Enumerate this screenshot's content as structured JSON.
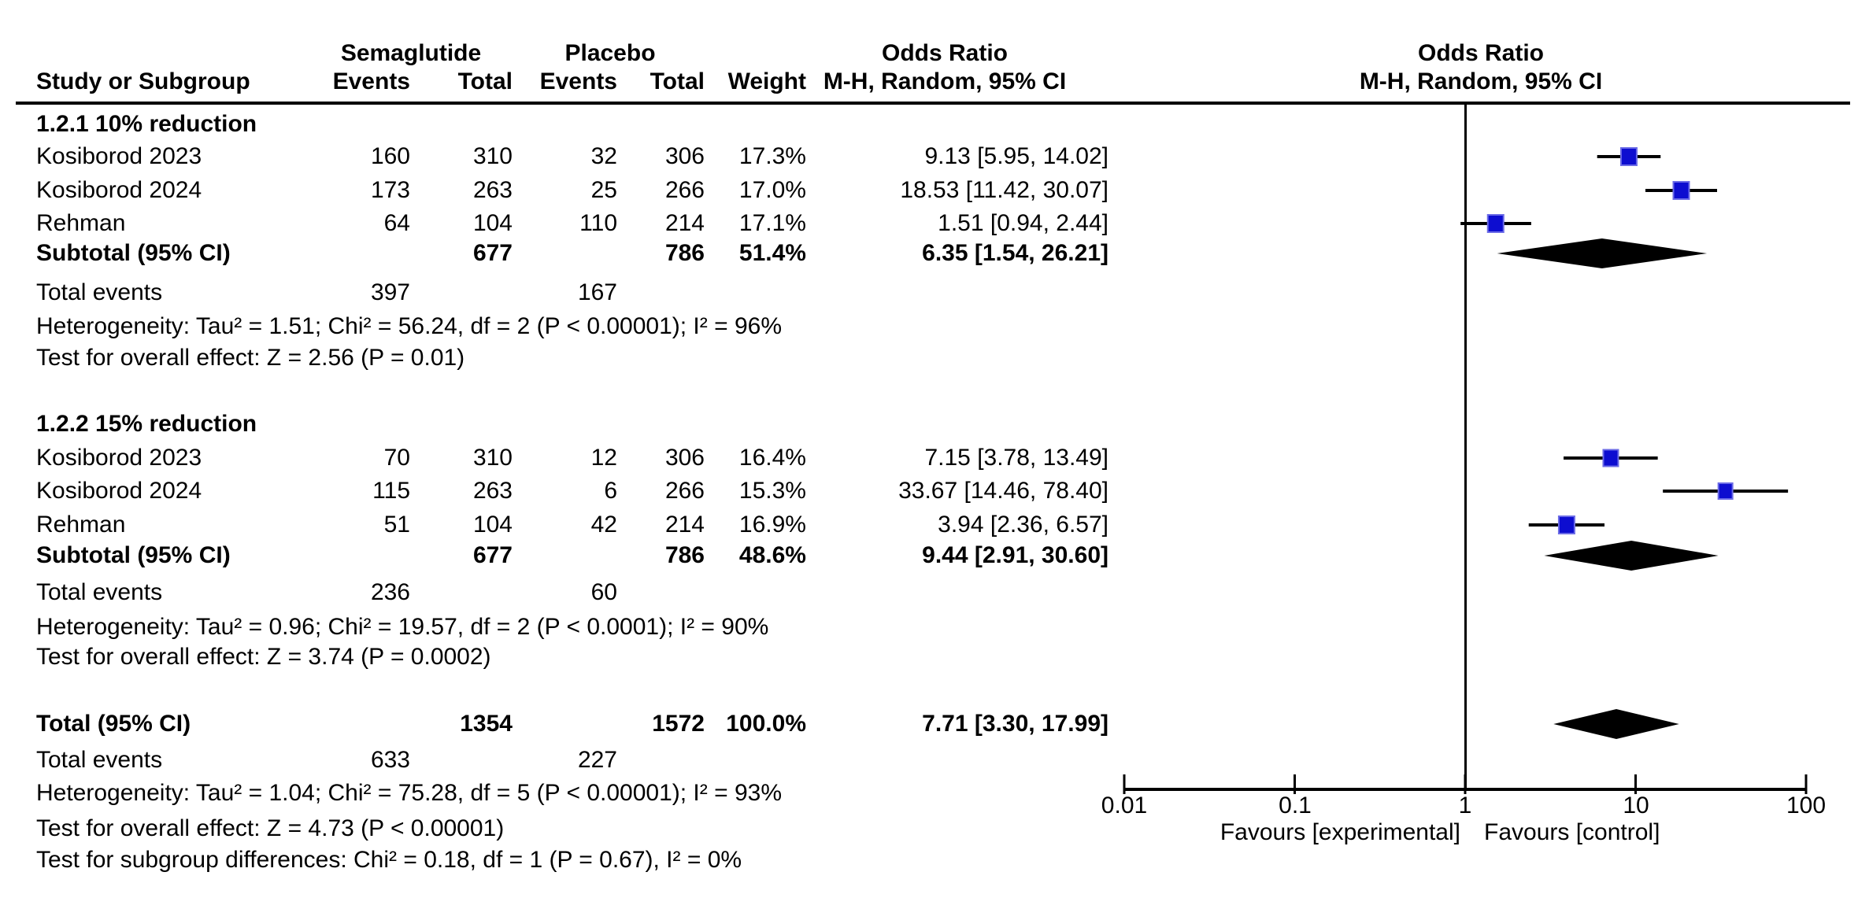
{
  "header": {
    "study": "Study or Subgroup",
    "group1": "Semaglutide",
    "group2": "Placebo",
    "events": "Events",
    "total": "Total",
    "weight": "Weight",
    "or_line1": "Odds Ratio",
    "mh": "M-H, Random, 95% CI"
  },
  "colors": {
    "marker_fill": "#0d0dd0",
    "marker_edge": "#6b6be6",
    "line": "#000000",
    "diamond": "#000000"
  },
  "chart_data": {
    "type": "scatter",
    "subtype": "forest-plot",
    "x_scale": "log10",
    "xlim": [
      0.01,
      100
    ],
    "x_ticks": [
      0.01,
      0.1,
      1,
      10,
      100
    ],
    "x_tick_labels": [
      "0.01",
      "0.1",
      "1",
      "10",
      "100"
    ],
    "null_line": 1,
    "favours_left": "Favours [experimental]",
    "favours_right": "Favours [control]",
    "sections": [
      {
        "title": "1.2.1 10% reduction",
        "studies": [
          {
            "label": "Kosiborod 2023",
            "e1": "160",
            "t1": "310",
            "e2": "32",
            "t2": "306",
            "weight_text": "17.3%",
            "ci_text": "9.13 [5.95, 14.02]",
            "or": 9.13,
            "lo": 5.95,
            "hi": 14.02,
            "weight": 17.3
          },
          {
            "label": "Kosiborod 2024",
            "e1": "173",
            "t1": "263",
            "e2": "25",
            "t2": "266",
            "weight_text": "17.0%",
            "ci_text": "18.53 [11.42, 30.07]",
            "or": 18.53,
            "lo": 11.42,
            "hi": 30.07,
            "weight": 17.0
          },
          {
            "label": "Rehman",
            "e1": "64",
            "t1": "104",
            "e2": "110",
            "t2": "214",
            "weight_text": "17.1%",
            "ci_text": "1.51 [0.94, 2.44]",
            "or": 1.51,
            "lo": 0.94,
            "hi": 2.44,
            "weight": 17.1
          }
        ],
        "subtotal": {
          "label": "Subtotal (95% CI)",
          "t1": "677",
          "t2": "786",
          "weight_text": "51.4%",
          "ci_text": "6.35 [1.54, 26.21]",
          "or": 6.35,
          "lo": 1.54,
          "hi": 26.21
        },
        "total_events": {
          "label": "Total events",
          "e1": "397",
          "e2": "167"
        },
        "heterogeneity": "Heterogeneity: Tau² = 1.51; Chi² = 56.24, df = 2 (P < 0.00001); I² = 96%",
        "overall_effect": "Test for overall effect: Z = 2.56 (P = 0.01)"
      },
      {
        "title": "1.2.2 15% reduction",
        "studies": [
          {
            "label": "Kosiborod 2023",
            "e1": "70",
            "t1": "310",
            "e2": "12",
            "t2": "306",
            "weight_text": "16.4%",
            "ci_text": "7.15 [3.78, 13.49]",
            "or": 7.15,
            "lo": 3.78,
            "hi": 13.49,
            "weight": 16.4
          },
          {
            "label": "Kosiborod 2024",
            "e1": "115",
            "t1": "263",
            "e2": "6",
            "t2": "266",
            "weight_text": "15.3%",
            "ci_text": "33.67 [14.46, 78.40]",
            "or": 33.67,
            "lo": 14.46,
            "hi": 78.4,
            "weight": 15.3
          },
          {
            "label": "Rehman",
            "e1": "51",
            "t1": "104",
            "e2": "42",
            "t2": "214",
            "weight_text": "16.9%",
            "ci_text": "3.94 [2.36, 6.57]",
            "or": 3.94,
            "lo": 2.36,
            "hi": 6.57,
            "weight": 16.9
          }
        ],
        "subtotal": {
          "label": "Subtotal (95% CI)",
          "t1": "677",
          "t2": "786",
          "weight_text": "48.6%",
          "ci_text": "9.44 [2.91, 30.60]",
          "or": 9.44,
          "lo": 2.91,
          "hi": 30.6
        },
        "total_events": {
          "label": "Total events",
          "e1": "236",
          "e2": "60"
        },
        "heterogeneity": "Heterogeneity: Tau² = 0.96; Chi² = 19.57, df = 2 (P < 0.0001); I² = 90%",
        "overall_effect": "Test for overall effect: Z = 3.74 (P = 0.0002)"
      }
    ],
    "total": {
      "label": "Total (95% CI)",
      "t1": "1354",
      "t2": "1572",
      "weight_text": "100.0%",
      "ci_text": "7.71 [3.30, 17.99]",
      "or": 7.71,
      "lo": 3.3,
      "hi": 17.99,
      "total_events": {
        "label": "Total events",
        "e1": "633",
        "e2": "227"
      },
      "heterogeneity": "Heterogeneity: Tau² = 1.04; Chi² = 75.28, df = 5 (P < 0.00001); I² = 93%"
    },
    "footnotes": [
      "Test for overall effect: Z = 4.73 (P < 0.00001)",
      "Test for subgroup differences: Chi² = 0.18, df = 1 (P = 0.67), I² = 0%"
    ]
  }
}
